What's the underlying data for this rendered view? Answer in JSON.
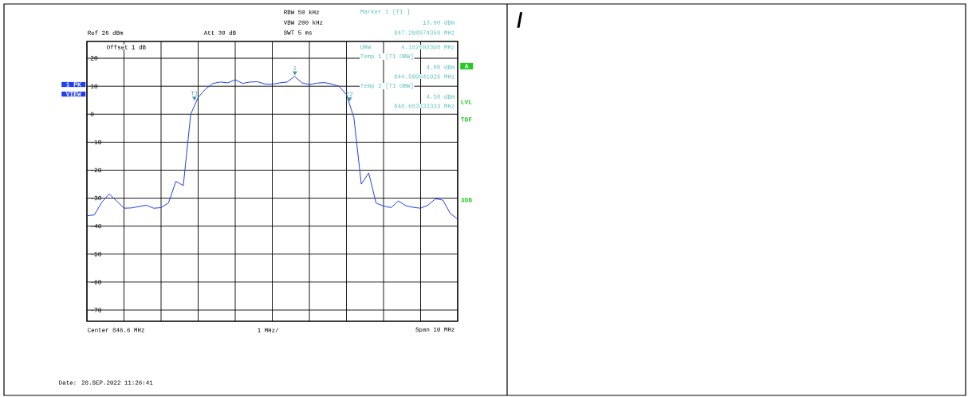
{
  "chart_data": {
    "type": "line",
    "ylim": [
      -74,
      26
    ],
    "categories": [
      null,
      null,
      null,
      null,
      null,
      null,
      null,
      null,
      null,
      null,
      null,
      null,
      null,
      null,
      null,
      null,
      null,
      null,
      null,
      null,
      null,
      null,
      null,
      null,
      null,
      null,
      null,
      null,
      null,
      null,
      null,
      null,
      null,
      null,
      null,
      null,
      null,
      null,
      null,
      null,
      null,
      null,
      null,
      null,
      null,
      null,
      null,
      null,
      null,
      null,
      null
    ],
    "yticks": [
      -70,
      -60,
      -50,
      -40,
      -30,
      -20,
      -10,
      0,
      10,
      20
    ],
    "tick_labels": "y",
    "grid": true,
    "marker": "none",
    "line_style": "solid",
    "series": [
      {
        "color": "#1f3ff0",
        "values": [
          -36.3,
          -36,
          -31.5,
          -28.5,
          -31,
          -33.6,
          -33.5,
          -33,
          -32.5,
          -33.6,
          -33.4,
          -31.7,
          -24,
          -25.5,
          0,
          6,
          9,
          11,
          11.5,
          11.2,
          12.3,
          11,
          11.5,
          11.6,
          10.8,
          10.7,
          11.2,
          11.5,
          13.5,
          11.2,
          10.6,
          11.1,
          11.3,
          10.8,
          10,
          7,
          -1.2,
          -25,
          -21,
          -31.8,
          -32.8,
          -33.4,
          -31,
          -32.7,
          -33.3,
          -33.6,
          -32.5,
          -30.2,
          -30.7,
          -35.5,
          -37.5
        ]
      }
    ],
    "annotations": [
      {
        "text": "1",
        "y": 13.9
      },
      {
        "text": "T1",
        "y": 4.86
      },
      {
        "text": "T2",
        "y": 4.58
      },
      "RBW 50 kHz",
      "VBW 200 kHz",
      "SWT 5 ms",
      "Ref 26 dBm",
      "Att 30 dB",
      "Marker 1 [T1 ]",
      "13.90 dBm",
      "847.208974359 MHz",
      "Offset 1 dB",
      "OBW",
      "4.182692308 MHz",
      "Temp 1 [T1 OBW]",
      "4.86 dBm",
      "844.500641026 MHz",
      "Temp 2 [T1 OBW]",
      "4.58 dBm",
      "848.683333333 MHz",
      "1 PK",
      "VIEW",
      "A",
      "LVL",
      "TDF",
      "3DB",
      "Center 846.6 MHz",
      "1 MHz/",
      "Span 10 MHz",
      "Date: 28.SEP.2022 11:26:41",
      "/"
    ]
  }
}
